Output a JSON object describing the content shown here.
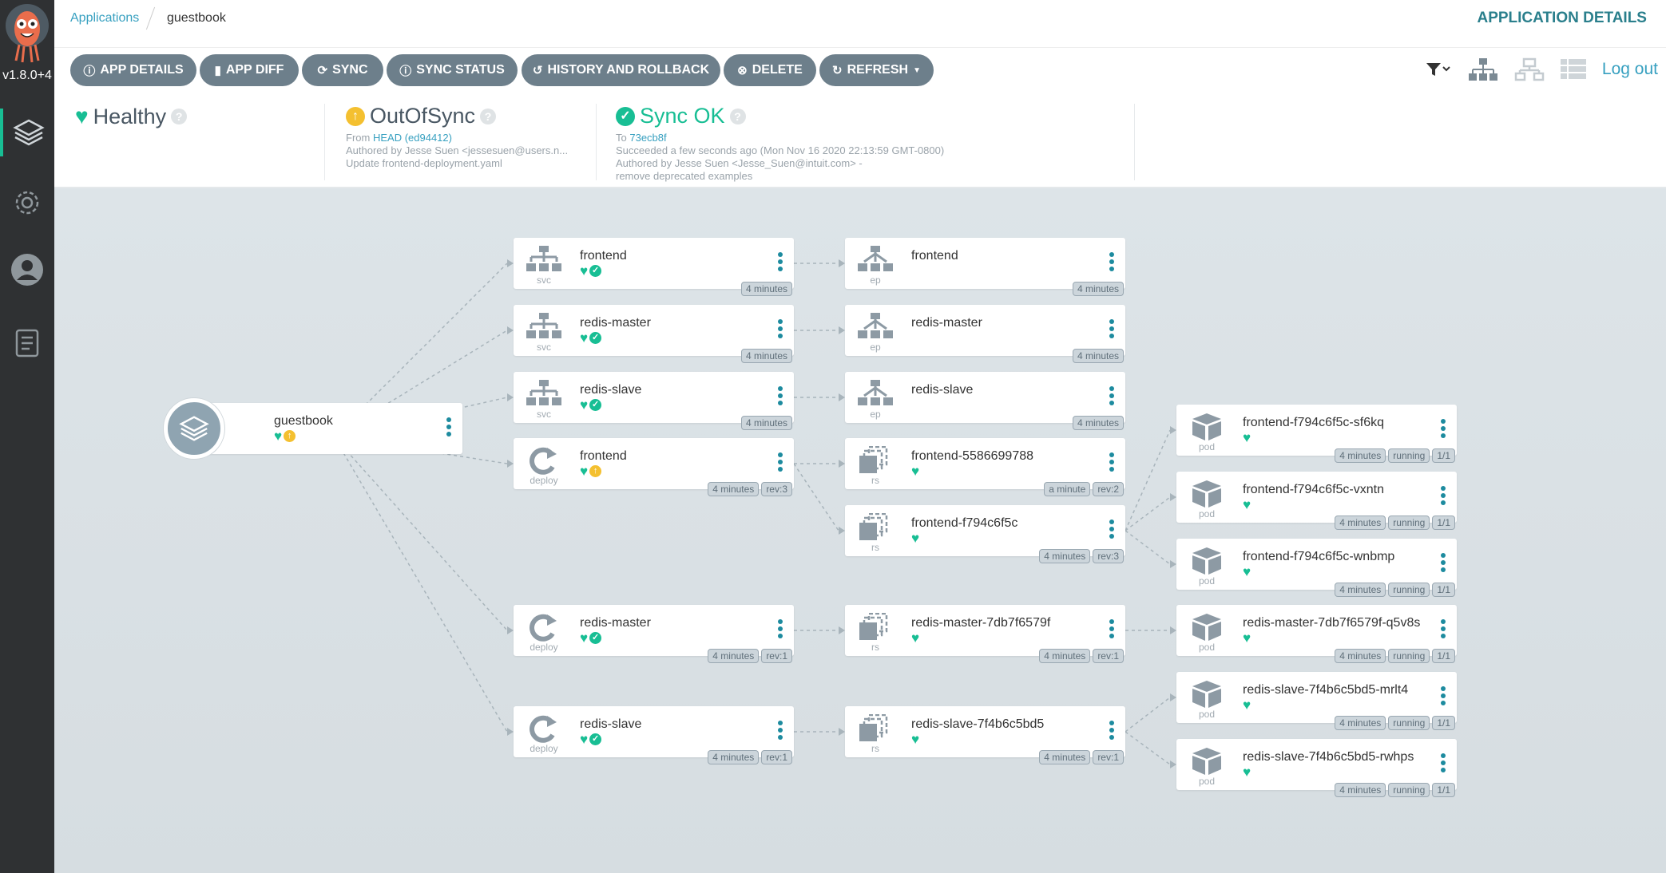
{
  "sidebar": {
    "version": "v1.8.0+4",
    "items": [
      {
        "name": "applications",
        "icon": "layers-icon"
      },
      {
        "name": "settings",
        "icon": "gear-icon"
      },
      {
        "name": "user-info",
        "icon": "user-icon"
      },
      {
        "name": "documentation",
        "icon": "docs-icon"
      }
    ]
  },
  "breadcrumb": {
    "parent": "Applications",
    "current": "guestbook"
  },
  "page_title": "APPLICATION DETAILS",
  "toolbar": {
    "buttons": [
      {
        "label": "APP DETAILS",
        "icon": "info-icon"
      },
      {
        "label": "APP DIFF",
        "icon": "file-icon"
      },
      {
        "label": "SYNC",
        "icon": "sync-icon"
      },
      {
        "label": "SYNC STATUS",
        "icon": "info-icon"
      },
      {
        "label": "HISTORY AND ROLLBACK",
        "icon": "history-icon"
      },
      {
        "label": "DELETE",
        "icon": "times-circle-icon"
      },
      {
        "label": "REFRESH",
        "icon": "refresh-icon"
      }
    ],
    "logout": "Log out"
  },
  "status": {
    "health": {
      "label": "Healthy"
    },
    "sync": {
      "label": "OutOfSync",
      "from_prefix": "From",
      "revision": "HEAD (ed94412)",
      "author": "Authored by Jesse Suen <jessesuen@users.n...",
      "message": "Update frontend-deployment.yaml"
    },
    "operation": {
      "label": "Sync OK",
      "to_prefix": "To",
      "revision": "73ecb8f",
      "result": "Succeeded a few seconds ago (Mon Nov 16 2020 22:13:59 GMT-0800)",
      "author": "Authored by Jesse Suen <Jesse_Suen@intuit.com> -",
      "message": "remove deprecated examples"
    }
  },
  "colors": {
    "healthy": "#18be94",
    "outofsync": "#f4c030",
    "accent": "#37a0c0",
    "button": "#6d7f8b"
  },
  "graph": {
    "nodes": [
      {
        "id": "app",
        "kind": "",
        "name": "guestbook",
        "health": "healthy",
        "sync": "outofsync",
        "badges": []
      },
      {
        "id": "svc-frontend",
        "kind": "svc",
        "name": "frontend",
        "health": "healthy",
        "sync": "synced",
        "badges": [
          "4 minutes"
        ],
        "parent": "app"
      },
      {
        "id": "svc-rm",
        "kind": "svc",
        "name": "redis-master",
        "health": "healthy",
        "sync": "synced",
        "badges": [
          "4 minutes"
        ],
        "parent": "app"
      },
      {
        "id": "svc-rs",
        "kind": "svc",
        "name": "redis-slave",
        "health": "healthy",
        "sync": "synced",
        "badges": [
          "4 minutes"
        ],
        "parent": "app"
      },
      {
        "id": "dep-frontend",
        "kind": "deploy",
        "name": "frontend",
        "health": "healthy",
        "sync": "outofsync",
        "badges": [
          "4 minutes",
          "rev:3"
        ],
        "parent": "app"
      },
      {
        "id": "dep-rm",
        "kind": "deploy",
        "name": "redis-master",
        "health": "healthy",
        "sync": "synced",
        "badges": [
          "4 minutes",
          "rev:1"
        ],
        "parent": "app"
      },
      {
        "id": "dep-rs",
        "kind": "deploy",
        "name": "redis-slave",
        "health": "healthy",
        "sync": "synced",
        "badges": [
          "4 minutes",
          "rev:1"
        ],
        "parent": "app"
      },
      {
        "id": "ep-frontend",
        "kind": "ep",
        "name": "frontend",
        "health": "",
        "sync": "",
        "badges": [
          "4 minutes"
        ],
        "parent": "svc-frontend"
      },
      {
        "id": "ep-rm",
        "kind": "ep",
        "name": "redis-master",
        "health": "",
        "sync": "",
        "badges": [
          "4 minutes"
        ],
        "parent": "svc-rm"
      },
      {
        "id": "ep-rs",
        "kind": "ep",
        "name": "redis-slave",
        "health": "",
        "sync": "",
        "badges": [
          "4 minutes"
        ],
        "parent": "svc-rs"
      },
      {
        "id": "rs-f1",
        "kind": "rs",
        "name": "frontend-5586699788",
        "health": "healthy",
        "sync": "",
        "badges": [
          "a minute",
          "rev:2"
        ],
        "parent": "dep-frontend"
      },
      {
        "id": "rs-f2",
        "kind": "rs",
        "name": "frontend-f794c6f5c",
        "health": "healthy",
        "sync": "",
        "badges": [
          "4 minutes",
          "rev:3"
        ],
        "parent": "dep-frontend"
      },
      {
        "id": "rs-rm",
        "kind": "rs",
        "name": "redis-master-7db7f6579f",
        "health": "healthy",
        "sync": "",
        "badges": [
          "4 minutes",
          "rev:1"
        ],
        "parent": "dep-rm"
      },
      {
        "id": "rs-rs",
        "kind": "rs",
        "name": "redis-slave-7f4b6c5bd5",
        "health": "healthy",
        "sync": "",
        "badges": [
          "4 minutes",
          "rev:1"
        ],
        "parent": "dep-rs"
      },
      {
        "id": "pod1",
        "kind": "pod",
        "name": "frontend-f794c6f5c-sf6kq",
        "health": "healthy",
        "sync": "",
        "badges": [
          "4 minutes",
          "running",
          "1/1"
        ],
        "parent": "rs-f2"
      },
      {
        "id": "pod2",
        "kind": "pod",
        "name": "frontend-f794c6f5c-vxntn",
        "health": "healthy",
        "sync": "",
        "badges": [
          "4 minutes",
          "running",
          "1/1"
        ],
        "parent": "rs-f2"
      },
      {
        "id": "pod3",
        "kind": "pod",
        "name": "frontend-f794c6f5c-wnbmp",
        "health": "healthy",
        "sync": "",
        "badges": [
          "4 minutes",
          "running",
          "1/1"
        ],
        "parent": "rs-f2"
      },
      {
        "id": "pod4",
        "kind": "pod",
        "name": "redis-master-7db7f6579f-q5v8s",
        "health": "healthy",
        "sync": "",
        "badges": [
          "4 minutes",
          "running",
          "1/1"
        ],
        "parent": "rs-rm"
      },
      {
        "id": "pod5",
        "kind": "pod",
        "name": "redis-slave-7f4b6c5bd5-mrlt4",
        "health": "healthy",
        "sync": "",
        "badges": [
          "4 minutes",
          "running",
          "1/1"
        ],
        "parent": "rs-rs"
      },
      {
        "id": "pod6",
        "kind": "pod",
        "name": "redis-slave-7f4b6c5bd5-rwhps",
        "health": "healthy",
        "sync": "",
        "badges": [
          "4 minutes",
          "running",
          "1/1"
        ],
        "parent": "rs-rs"
      }
    ]
  }
}
